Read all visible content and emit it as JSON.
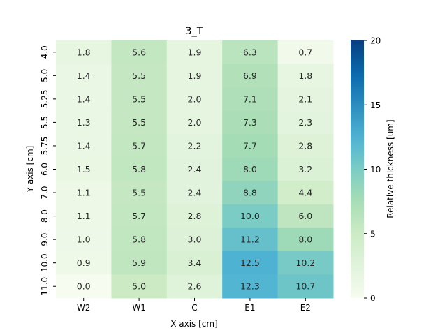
{
  "chart_data": {
    "type": "heatmap",
    "title": "3_T",
    "xlabel": "X axis [cm]",
    "ylabel": "Y axis [cm]",
    "x_categories": [
      "W2",
      "W1",
      "C",
      "E1",
      "E2"
    ],
    "y_categories": [
      "4.0",
      "5.0",
      "5.25",
      "5.5",
      "5.75",
      "6.0",
      "7.0",
      "8.0",
      "9.0",
      "10.0",
      "11.0"
    ],
    "values": [
      [
        1.8,
        5.6,
        1.9,
        6.3,
        0.7
      ],
      [
        1.4,
        5.5,
        1.9,
        6.9,
        1.8
      ],
      [
        1.4,
        5.5,
        2.0,
        7.1,
        2.1
      ],
      [
        1.3,
        5.5,
        2.0,
        7.3,
        2.3
      ],
      [
        1.4,
        5.7,
        2.2,
        7.7,
        2.8
      ],
      [
        1.5,
        5.8,
        2.4,
        8.0,
        3.2
      ],
      [
        1.1,
        5.5,
        2.4,
        8.8,
        4.4
      ],
      [
        1.1,
        5.7,
        2.8,
        10.0,
        6.0
      ],
      [
        1.0,
        5.8,
        3.0,
        11.2,
        8.0
      ],
      [
        0.9,
        5.9,
        3.4,
        12.5,
        10.2
      ],
      [
        0.0,
        5.0,
        2.6,
        12.3,
        10.7
      ]
    ],
    "value_format_decimals": 1,
    "colorbar": {
      "label": "Relative thickness [um]",
      "range": [
        0,
        20
      ],
      "ticks": [
        0,
        5,
        10,
        15,
        20
      ],
      "colormap": "GnBu"
    },
    "grid": false
  }
}
